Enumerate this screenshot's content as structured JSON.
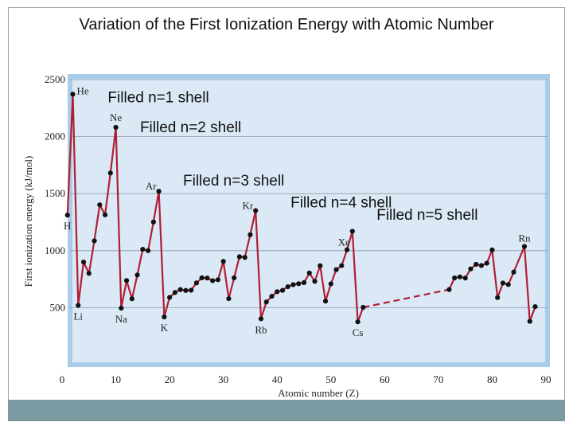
{
  "title": "Variation of the First Ionization Energy with Atomic Number",
  "colors": {
    "line": "#b01e32",
    "point": "#111111",
    "panel": "#dbe9f6",
    "panel_border": "#a9cde8",
    "footer": "#7b9aa1"
  },
  "chart_data": {
    "type": "line",
    "xlabel": "Atomic number (Z)",
    "ylabel": "First ionization energy (kJ/mol)",
    "xlim": [
      0,
      90
    ],
    "ylim": [
      0,
      2500
    ],
    "x_ticks": [
      "0",
      "10",
      "20",
      "30",
      "40",
      "50",
      "60",
      "70",
      "80",
      "90"
    ],
    "y_ticks": [
      "500",
      "1000",
      "1500",
      "2000",
      "2500"
    ],
    "grid": "horizontal",
    "series": [
      {
        "style": "solid",
        "points": [
          [
            1,
            1312
          ],
          [
            2,
            2372
          ],
          [
            3,
            520
          ],
          [
            4,
            900
          ],
          [
            5,
            801
          ],
          [
            6,
            1086
          ],
          [
            7,
            1402
          ],
          [
            8,
            1314
          ],
          [
            9,
            1681
          ],
          [
            10,
            2081
          ],
          [
            11,
            496
          ],
          [
            12,
            738
          ],
          [
            13,
            578
          ],
          [
            14,
            787
          ],
          [
            15,
            1012
          ],
          [
            16,
            1000
          ],
          [
            17,
            1251
          ],
          [
            18,
            1521
          ],
          [
            19,
            419
          ],
          [
            20,
            590
          ],
          [
            21,
            633
          ],
          [
            22,
            659
          ],
          [
            23,
            651
          ],
          [
            24,
            653
          ],
          [
            25,
            717
          ],
          [
            26,
            762
          ],
          [
            27,
            760
          ],
          [
            28,
            737
          ],
          [
            29,
            745
          ],
          [
            30,
            906
          ],
          [
            31,
            579
          ],
          [
            32,
            762
          ],
          [
            33,
            947
          ],
          [
            34,
            941
          ],
          [
            35,
            1140
          ],
          [
            36,
            1351
          ],
          [
            37,
            403
          ],
          [
            38,
            550
          ],
          [
            39,
            600
          ],
          [
            40,
            640
          ],
          [
            41,
            652
          ],
          [
            42,
            684
          ],
          [
            43,
            702
          ],
          [
            44,
            710
          ],
          [
            45,
            720
          ],
          [
            46,
            804
          ],
          [
            47,
            731
          ],
          [
            48,
            868
          ],
          [
            49,
            558
          ],
          [
            50,
            709
          ],
          [
            51,
            834
          ],
          [
            52,
            869
          ],
          [
            53,
            1008
          ],
          [
            54,
            1170
          ],
          [
            55,
            376
          ],
          [
            56,
            503
          ]
        ]
      },
      {
        "style": "dashed",
        "points": [
          [
            56,
            503
          ],
          [
            72,
            659
          ]
        ]
      },
      {
        "style": "solid",
        "points": [
          [
            72,
            659
          ],
          [
            73,
            761
          ],
          [
            74,
            770
          ],
          [
            75,
            760
          ],
          [
            76,
            840
          ],
          [
            77,
            880
          ],
          [
            78,
            870
          ],
          [
            79,
            890
          ],
          [
            80,
            1007
          ],
          [
            81,
            589
          ],
          [
            82,
            716
          ],
          [
            83,
            703
          ],
          [
            84,
            812
          ],
          [
            86,
            1037
          ],
          [
            87,
            380
          ],
          [
            88,
            509
          ]
        ]
      }
    ],
    "element_labels": [
      {
        "text": "He",
        "x": 2,
        "y": 2372
      },
      {
        "text": "Ne",
        "x": 10,
        "y": 2081
      },
      {
        "text": "Ar",
        "x": 18,
        "y": 1521
      },
      {
        "text": "Kr",
        "x": 36,
        "y": 1351
      },
      {
        "text": "Xe",
        "x": 54,
        "y": 1170
      },
      {
        "text": "Rn",
        "x": 86,
        "y": 1037
      },
      {
        "text": "H",
        "x": 1,
        "y": 1312
      },
      {
        "text": "Li",
        "x": 3,
        "y": 520
      },
      {
        "text": "Na",
        "x": 11,
        "y": 496
      },
      {
        "text": "K",
        "x": 19,
        "y": 419
      },
      {
        "text": "Rb",
        "x": 37,
        "y": 403
      },
      {
        "text": "Cs",
        "x": 55,
        "y": 376
      }
    ],
    "annotations": [
      {
        "text": "Filled n=1 shell",
        "x": 8.5,
        "y": 2300
      },
      {
        "text": "Filled n=2 shell",
        "x": 14.5,
        "y": 2040
      },
      {
        "text": "Filled n=3 shell",
        "x": 22.5,
        "y": 1570
      },
      {
        "text": "Filled n=4 shell",
        "x": 42.5,
        "y": 1380
      },
      {
        "text": "Filled n=5 shell",
        "x": 58.5,
        "y": 1270
      }
    ]
  }
}
